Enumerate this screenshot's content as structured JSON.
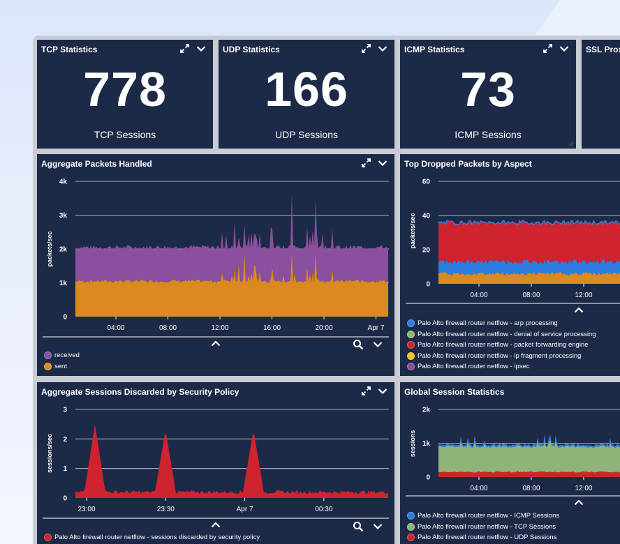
{
  "colors": {
    "panel": "#1c2a47",
    "purple": "#8a4f9e",
    "orange": "#db8a1f",
    "red": "#cf2330",
    "blue": "#2e7de1",
    "green": "#8fb47a",
    "yellow": "#f0c419"
  },
  "stat_panels": [
    {
      "title": "TCP Statistics",
      "value": "778",
      "label": "TCP Sessions"
    },
    {
      "title": "UDP Statistics",
      "value": "166",
      "label": "UDP Sessions"
    },
    {
      "title": "ICMP Statistics",
      "value": "73",
      "label": "ICMP Sessions"
    },
    {
      "title": "SSL Proxy",
      "value": "",
      "label": ""
    }
  ],
  "icons": {
    "expand": "expand-arrows-icon",
    "collapse": "chevron-down-icon",
    "toggle_legend": "chevron-up-icon",
    "zoom": "magnifier-icon",
    "legend_dot": "circle-swatch"
  },
  "panels": {
    "aggregate_packets": {
      "title": "Aggregate Packets Handled",
      "chart_data": {
        "type": "area",
        "ylabel": "packets/sec",
        "yticks": [
          "4k",
          "3k",
          "2k",
          "1k",
          "0"
        ],
        "ylim": [
          0,
          4000
        ],
        "xticks": [
          "04:00",
          "08:00",
          "12:00",
          "16:00",
          "20:00",
          "Apr 7"
        ],
        "stacked": true,
        "series": [
          {
            "name": "received",
            "color": "#8a4f9e",
            "baseline": 2050,
            "approx_values": [
              2050,
              2100,
              2050,
              2100,
              2050,
              2500,
              2900,
              3350,
              3650,
              2050
            ]
          },
          {
            "name": "sent",
            "color": "#db8a1f",
            "baseline": 1050,
            "approx_values": [
              1050,
              1100,
              1050,
              1150,
              1100,
              1350,
              1950,
              1950,
              1950,
              1050
            ]
          }
        ],
        "legend_position": "bottom-left"
      },
      "legend": [
        "received",
        "sent"
      ]
    },
    "top_dropped": {
      "title": "Top Dropped Packets by Aspect",
      "chart_data": {
        "type": "area",
        "ylabel": "packets/sec",
        "yticks": [
          "60",
          "40",
          "20",
          "0"
        ],
        "ylim": [
          0,
          60
        ],
        "xticks": [
          "04:00",
          "08:00",
          "12:00"
        ],
        "stacked": true,
        "series": [
          {
            "name": "Palo Alto firewall router netflow - arp processing",
            "color": "#2e7de1",
            "approx_top": 13
          },
          {
            "name": "Palo Alto firewall router netflow - denial of service processing",
            "color": "#8fb47a",
            "approx_top": 0
          },
          {
            "name": "Palo Alto firewall router netflow - packet forwarding engine",
            "color": "#cf2330",
            "approx_top": 36
          },
          {
            "name": "Palo Alto firewall router netflow - ip fragment processing",
            "color": "#f0c419",
            "approx_top": 0
          },
          {
            "name": "Palo Alto firewall router netflow - ipsec",
            "color": "#8a4f9e",
            "approx_top": 0
          }
        ],
        "base_layer": {
          "color": "#db8a1f",
          "approx_top": 6
        },
        "legend_position": "bottom-left"
      },
      "legend": [
        "Palo Alto firewall router netflow - arp processing",
        "Palo Alto firewall router netflow - denial of service processing",
        "Palo Alto firewall router netflow - packet forwarding engine",
        "Palo Alto firewall router netflow - ip fragment processing",
        "Palo Alto firewall router netflow - ipsec"
      ]
    },
    "sessions_discarded": {
      "title": "Aggregate Sessions Discarded by Security Policy",
      "chart_data": {
        "type": "area",
        "ylabel": "sessions/sec",
        "yticks": [
          "3",
          "2",
          "1",
          "0"
        ],
        "ylim": [
          0,
          3
        ],
        "xticks": [
          "23:00",
          "23:30",
          "Apr 7",
          "00:30"
        ],
        "series": [
          {
            "name": "Palo Alto firewall router netflow - sessions discarded by security policy",
            "color": "#cf2330",
            "baseline": 0.2,
            "spikes": [
              2.5,
              2.3,
              2.3
            ]
          }
        ],
        "legend_position": "bottom-left"
      },
      "legend": [
        "Palo Alto firewall router netflow - sessions discarded by security policy"
      ]
    },
    "global_sessions": {
      "title": "Global Session Statistics",
      "chart_data": {
        "type": "area",
        "ylabel": "sessions",
        "yticks": [
          "2k",
          "1k",
          "0"
        ],
        "ylim": [
          0,
          2000
        ],
        "xticks": [
          "04:00",
          "08:00",
          "12:00"
        ],
        "stacked": true,
        "series": [
          {
            "name": "Palo Alto firewall router netflow - ICMP Sessions",
            "color": "#2e7de1",
            "approx_top": 950
          },
          {
            "name": "Palo Alto firewall router netflow - TCP Sessions",
            "color": "#8fb47a",
            "approx_top": 900
          },
          {
            "name": "Palo Alto firewall router netflow - UDP Sessions",
            "color": "#cf2330",
            "approx_top": 150
          }
        ],
        "legend_position": "bottom-left"
      },
      "legend": [
        "Palo Alto firewall router netflow - ICMP Sessions",
        "Palo Alto firewall router netflow - TCP Sessions",
        "Palo Alto firewall router netflow - UDP Sessions"
      ]
    }
  }
}
